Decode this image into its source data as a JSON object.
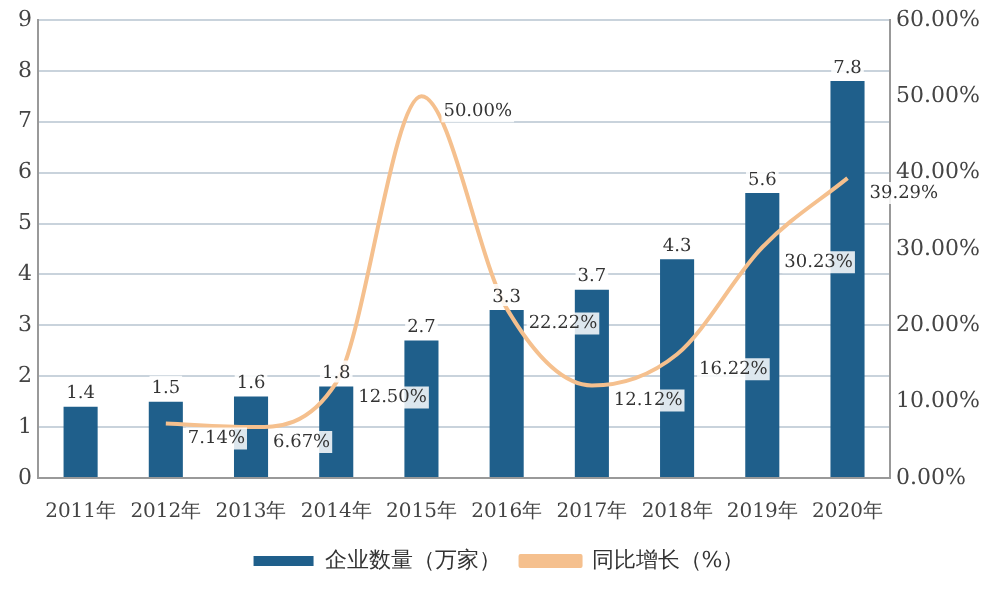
{
  "chart_data": {
    "type": "bar",
    "categories": [
      "2011年",
      "2012年",
      "2013年",
      "2014年",
      "2015年",
      "2016年",
      "2017年",
      "2018年",
      "2019年",
      "2020年"
    ],
    "series": [
      {
        "name": "企业数量（万家）",
        "color": "#1f5f8b",
        "values": [
          1.4,
          1.5,
          1.6,
          1.8,
          2.7,
          3.3,
          3.7,
          4.3,
          5.6,
          7.8
        ],
        "value_labels": [
          "1.4",
          "1.5",
          "1.6",
          "1.8",
          "2.7",
          "3.3",
          "3.7",
          "4.3",
          "5.6",
          "7.8"
        ]
      },
      {
        "name": "同比增长（%）",
        "type": "line",
        "axis": "y2",
        "color": "#f5c08e",
        "values": [
          null,
          7.14,
          6.67,
          12.5,
          50,
          22.22,
          12.12,
          16.22,
          30.23,
          39.29
        ],
        "value_labels": [
          null,
          "7.14%",
          "6.67%",
          "12.50%",
          "50.00%",
          "22.22%",
          "12.12%",
          "16.22%",
          "30.23%",
          "39.29%"
        ]
      }
    ],
    "ylim": [
      0,
      9
    ],
    "yticks": [
      0,
      1,
      2,
      3,
      4,
      5,
      6,
      7,
      8,
      9
    ],
    "y2lim": [
      0,
      60
    ],
    "y2ticks": [
      {
        "value": 0,
        "label": "0.00%"
      },
      {
        "value": 10,
        "label": "10.00%"
      },
      {
        "value": 20,
        "label": "20.00%"
      },
      {
        "value": 30,
        "label": "30.00%"
      },
      {
        "value": 40,
        "label": "40.00%"
      },
      {
        "value": 50,
        "label": "50.00%"
      },
      {
        "value": 60,
        "label": "60.00%"
      }
    ],
    "grid": "y",
    "legend": "bottom",
    "marker": "none"
  }
}
